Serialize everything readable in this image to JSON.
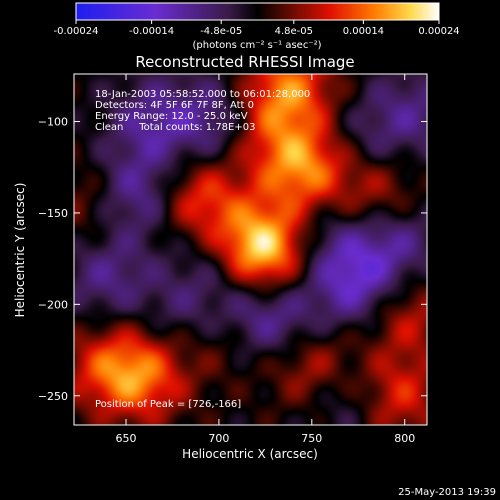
{
  "chart_data": {
    "type": "heatmap",
    "title": "Reconstructed RHESSI Image",
    "xlabel": "Heliocentric X (arcsec)",
    "ylabel": "Heliocentric Y (arcsec)",
    "xlim": [
      622,
      812
    ],
    "ylim": [
      -266,
      -74
    ],
    "xticks": [
      650,
      700,
      750,
      800
    ],
    "yticks": [
      -100,
      -150,
      -200,
      -250
    ],
    "colorbar": {
      "ticks": [
        "-0.00024",
        "-0.00014",
        "-4.8e-05",
        "4.8e-05",
        "0.00014",
        "0.00024"
      ],
      "tick_values": [
        -0.00024,
        -0.00014,
        -4.8e-05,
        4.8e-05,
        0.00014,
        0.00024
      ],
      "range": [
        -0.00024,
        0.00024
      ],
      "units": "(photons cm⁻² s⁻¹ asec⁻²)"
    },
    "annotations": [
      "18-Jan-2003 05:58:52.000 to 06:01:28.000",
      "Detectors: 4F 5F 6F 7F 8F, Att 0",
      "Energy Range: 12.0 - 25.0 keV",
      "Clean     Total counts: 1.78E+03",
      "Position of Peak = [726,-166]"
    ],
    "peak": [
      726,
      -166
    ],
    "sources": [
      {
        "x": 722,
        "y": -170,
        "amp": 0.00024
      },
      {
        "x": 745,
        "y": -125,
        "amp": 0.00016
      },
      {
        "x": 738,
        "y": -82,
        "amp": 0.00014
      },
      {
        "x": 690,
        "y": -143,
        "amp": 0.00012
      },
      {
        "x": 785,
        "y": -140,
        "amp": 9e-05
      },
      {
        "x": 720,
        "y": -103,
        "amp": 8e-05
      },
      {
        "x": 640,
        "y": -235,
        "amp": 0.0001
      },
      {
        "x": 660,
        "y": -240,
        "amp": 0.00012
      },
      {
        "x": 750,
        "y": -232,
        "amp": 0.00011
      },
      {
        "x": 795,
        "y": -250,
        "amp": 0.00011
      },
      {
        "x": 800,
        "y": -205,
        "amp": 9e-05
      },
      {
        "x": 700,
        "y": -215,
        "amp": 7e-05
      },
      {
        "x": 632,
        "y": -145,
        "amp": 6e-05
      },
      {
        "x": 665,
        "y": -100,
        "amp": -9e-05
      },
      {
        "x": 700,
        "y": -100,
        "amp": -0.0001
      },
      {
        "x": 655,
        "y": -140,
        "amp": -0.00011
      },
      {
        "x": 700,
        "y": -175,
        "amp": -6e-05
      },
      {
        "x": 640,
        "y": -185,
        "amp": -8e-05
      },
      {
        "x": 685,
        "y": -205,
        "amp": -7e-05
      },
      {
        "x": 720,
        "y": -205,
        "amp": -9e-05
      },
      {
        "x": 775,
        "y": -190,
        "amp": -0.00012
      },
      {
        "x": 795,
        "y": -165,
        "amp": -9e-05
      },
      {
        "x": 760,
        "y": -165,
        "amp": -6e-05
      },
      {
        "x": 805,
        "y": -95,
        "amp": -7e-05
      },
      {
        "x": 780,
        "y": -110,
        "amp": -5e-05
      },
      {
        "x": 740,
        "y": -215,
        "amp": -6e-05
      },
      {
        "x": 770,
        "y": -250,
        "amp": -7e-05
      }
    ]
  },
  "footer": {
    "date": "25-May-2013 19:39"
  }
}
